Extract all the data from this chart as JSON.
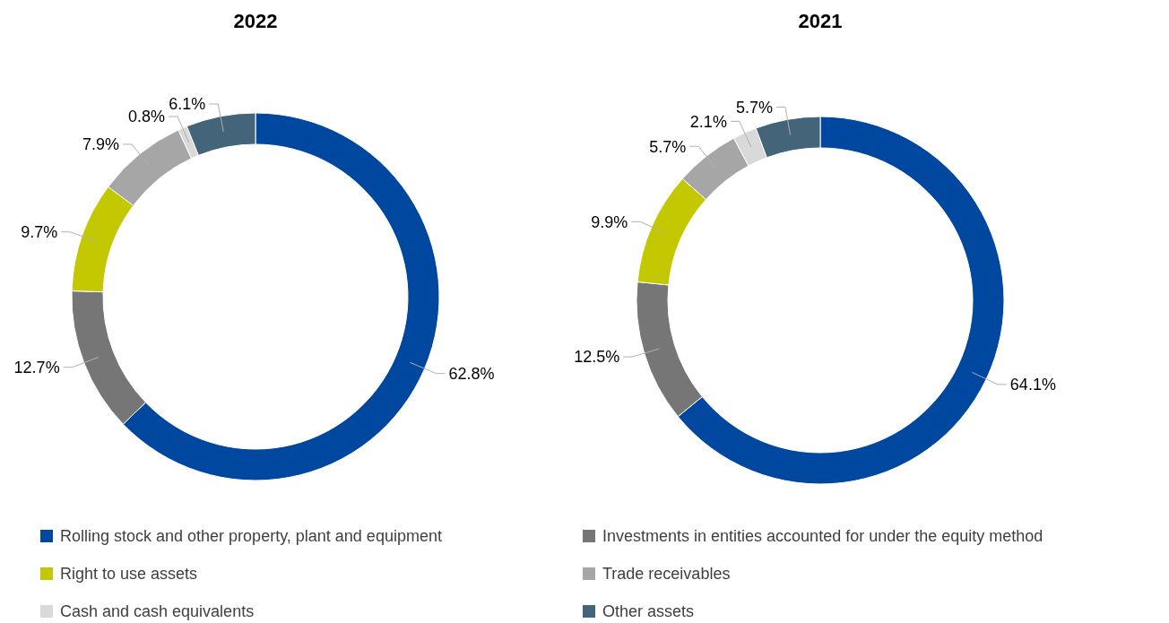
{
  "chart_data": [
    {
      "type": "donut",
      "title": "2022",
      "categories": [
        "Rolling stock and other property, plant and equipment",
        "Investments in entities accounted for under the equity method",
        "Right to use assets",
        "Trade receivables",
        "Cash and cash equivalents",
        "Other assets"
      ],
      "values": [
        62.8,
        12.7,
        9.7,
        7.9,
        0.8,
        6.1
      ],
      "value_labels": [
        "62.8%",
        "12.7%",
        "9.7%",
        "7.9%",
        "0.8%",
        "6.1%"
      ],
      "colors": [
        "#0047a0",
        "#767676",
        "#c4c800",
        "#a6a6a6",
        "#d9d9d9",
        "#44647a"
      ],
      "legend": "bottom"
    },
    {
      "type": "donut",
      "title": "2021",
      "categories": [
        null,
        null,
        null,
        null,
        null,
        null
      ],
      "values": [
        64.1,
        12.5,
        9.9,
        5.7,
        2.1,
        5.7
      ],
      "value_labels": [
        "64.1%",
        "12.5%",
        "9.9%",
        "5.7%",
        "2.1%",
        "5.7%"
      ],
      "colors": [
        "#0047a0",
        "#767676",
        "#c4c800",
        "#a6a6a6",
        "#d9d9d9",
        "#44647a"
      ]
    }
  ]
}
